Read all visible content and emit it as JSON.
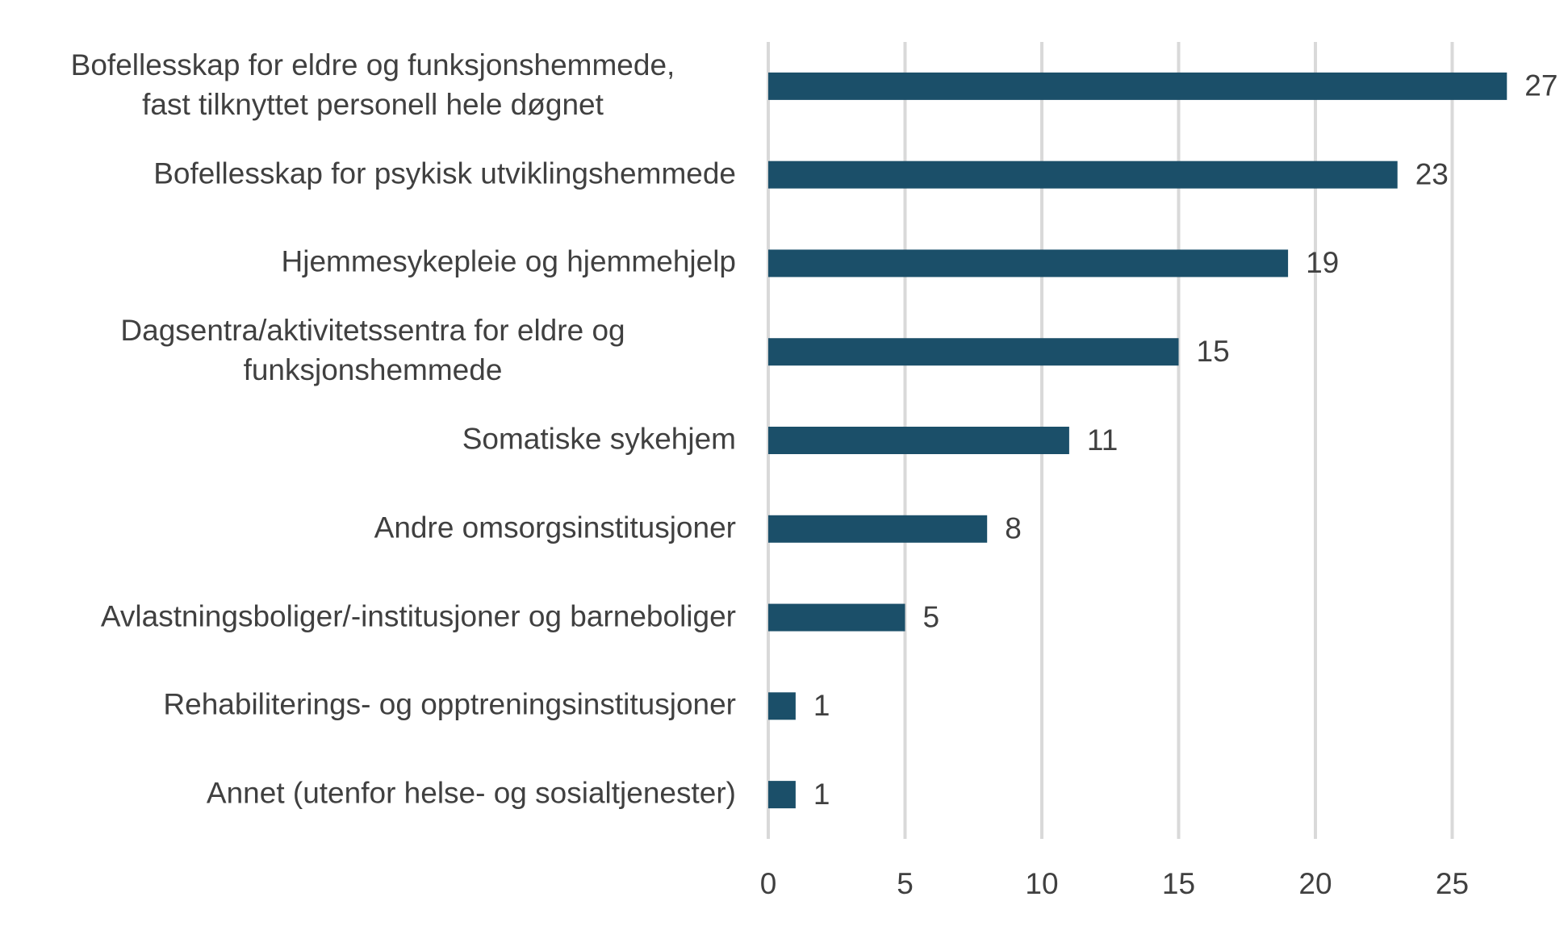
{
  "chart_data": {
    "type": "bar",
    "orientation": "horizontal",
    "categories": [
      "Bofellesskap for eldre og funksjonshemmede,\nfast tilknyttet personell hele døgnet",
      "Bofellesskap for psykisk utviklingshemmede",
      "Hjemmesykepleie og hjemmehjelp",
      "Dagsentra/aktivitetssentra for eldre og\nfunksjonshemmede",
      "Somatiske sykehjem",
      "Andre omsorgsinstitusjoner",
      "Avlastningsboliger/-institusjoner og barneboliger",
      "Rehabiliterings- og opptreningsinstitusjoner",
      "Annet (utenfor helse- og sosialtjenester)"
    ],
    "values": [
      27,
      23,
      19,
      15,
      11,
      8,
      5,
      1,
      1
    ],
    "color": "#1b4f69",
    "xlim": [
      0,
      28
    ],
    "xticks": [
      0,
      5,
      10,
      15,
      20,
      25
    ],
    "grid": true
  }
}
